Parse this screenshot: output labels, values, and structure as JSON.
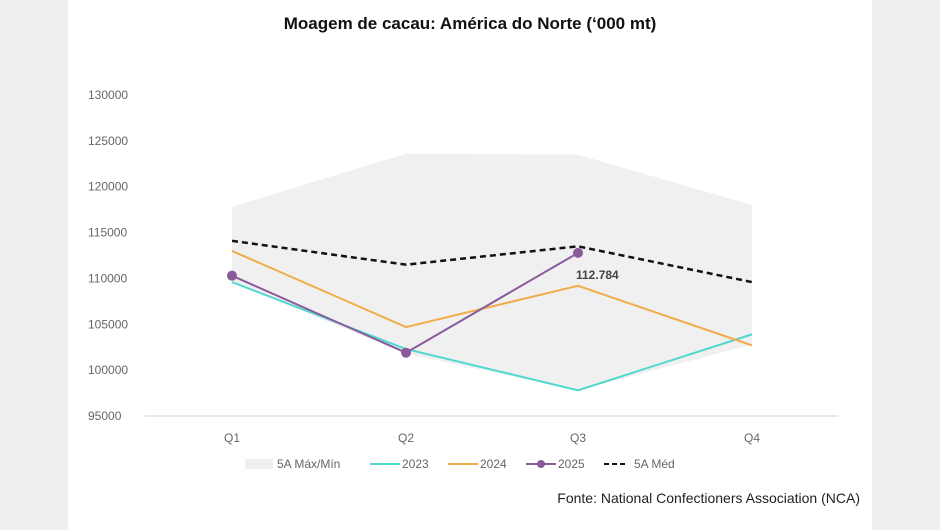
{
  "chart_data": {
    "type": "line",
    "title": "Moagem de cacau: América do Norte (‘000 mt)",
    "categories": [
      "Q1",
      "Q2",
      "Q3",
      "Q4"
    ],
    "ylim": [
      95000,
      130000
    ],
    "yticks": [
      "95000",
      "100000",
      "105000",
      "110000",
      "115000",
      "120000",
      "125000",
      "130000"
    ],
    "ytick_values": [
      95000,
      100000,
      105000,
      110000,
      115000,
      120000,
      125000,
      130000
    ],
    "grid": false,
    "band": {
      "name": "5A Máx/Mín",
      "max": [
        117800,
        123600,
        123500,
        118000
      ],
      "min": [
        109600,
        101800,
        97800,
        102800
      ],
      "color": "#f0f0f0"
    },
    "series": [
      {
        "name": "2023",
        "values": [
          109600,
          102300,
          97800,
          103900
        ],
        "color": "#4fd8cf",
        "style": "solid"
      },
      {
        "name": "2024",
        "values": [
          113000,
          104700,
          109200,
          102700
        ],
        "color": "#f0ad4a",
        "style": "solid"
      },
      {
        "name": "2025",
        "values": [
          110300,
          101900,
          112784,
          null
        ],
        "color": "#8a5a9b",
        "style": "markers"
      },
      {
        "name": "5A Méd",
        "values": [
          114100,
          111500,
          113500,
          109600
        ],
        "color": "#111111",
        "style": "dashed"
      }
    ],
    "annotation": {
      "text": "112.784",
      "category": "Q3",
      "value": 112784
    },
    "legend_position": "bottom"
  },
  "source": "Fonte: National Confectioners Association (NCA)"
}
